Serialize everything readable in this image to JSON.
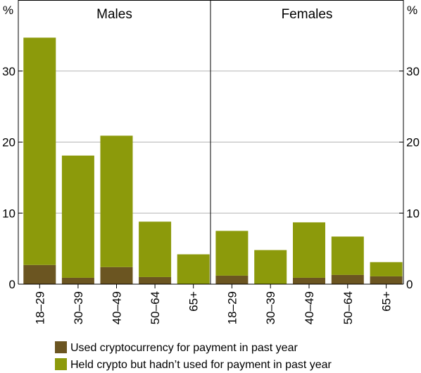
{
  "chart_data": {
    "type": "bar",
    "stacked": true,
    "y_unit_label": "%",
    "ylim": [
      0,
      40
    ],
    "yticks": [
      0,
      10,
      20,
      30
    ],
    "grid": true,
    "legend_position": "bottom",
    "panels": [
      {
        "title": "Males",
        "categories": [
          "18–29",
          "30–39",
          "40–49",
          "50–64",
          "65+"
        ],
        "series": [
          {
            "name": "Used cryptocurrency for payment in past year",
            "color": "#6b5521",
            "values": [
              2.7,
              0.9,
              2.4,
              1.0,
              0.0
            ]
          },
          {
            "name": "Held crypto but hadn’t used for payment in past year",
            "color": "#8c9a0b",
            "values": [
              32.0,
              17.2,
              18.5,
              7.8,
              4.2
            ]
          }
        ]
      },
      {
        "title": "Females",
        "categories": [
          "18–29",
          "30–39",
          "40–49",
          "50–64",
          "65+"
        ],
        "series": [
          {
            "name": "Used cryptocurrency for payment in past year",
            "color": "#6b5521",
            "values": [
              1.2,
              0.0,
              0.9,
              1.3,
              1.1
            ]
          },
          {
            "name": "Held crypto but hadn’t used for payment in past year",
            "color": "#8c9a0b",
            "values": [
              6.3,
              4.8,
              7.8,
              5.4,
              2.0
            ]
          }
        ]
      }
    ]
  }
}
